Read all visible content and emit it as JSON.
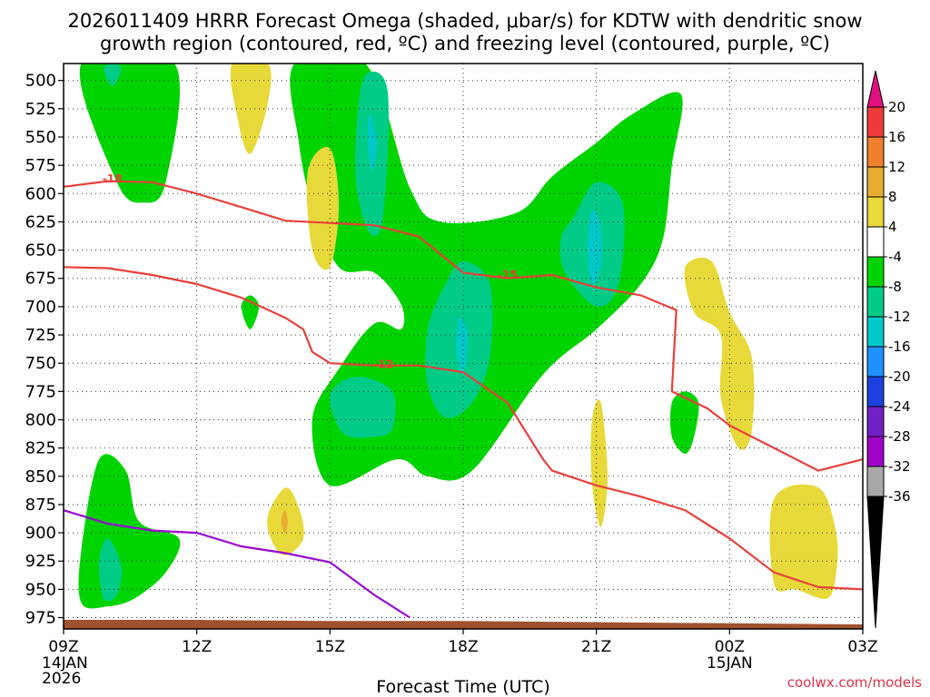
{
  "chart_data": {
    "type": "contour",
    "title_line1": "2026011409 HRRR Forecast Omega (shaded, μbar/s) for KDTW with dendritic snow",
    "title_line2": "growth region (contoured, red, ºC) and freezing level (contoured, purple, ºC)",
    "xlabel": "Forecast Time (UTC)",
    "source": "coolwx.com/models",
    "x_hours": [
      0,
      3,
      6,
      9,
      12,
      15,
      18
    ],
    "x_ticks": [
      "09Z",
      "12Z",
      "15Z",
      "18Z",
      "21Z",
      "00Z",
      "03Z"
    ],
    "x_sublabels": [
      {
        "hour": 0,
        "lines": [
          "14JAN",
          "2026"
        ]
      },
      {
        "hour": 15,
        "lines": [
          "15JAN"
        ]
      }
    ],
    "y_ticks": [
      500,
      525,
      550,
      575,
      600,
      625,
      650,
      675,
      700,
      725,
      750,
      775,
      800,
      825,
      850,
      875,
      900,
      925,
      950,
      975
    ],
    "ylim_hpa": [
      985,
      485
    ],
    "xlim_hours": [
      0,
      18
    ],
    "colorbar": {
      "labels": [
        "20",
        "16",
        "12",
        "8",
        "4",
        "-4",
        "-8",
        "-12",
        "-16",
        "-20",
        "-24",
        "-28",
        "-32",
        "-36"
      ],
      "colors": [
        "#ef3a3a",
        "#f0802c",
        "#e8ac30",
        "#e8d93a",
        "#ffffff",
        "#00d400",
        "#00cc88",
        "#00c8c8",
        "#1e90ff",
        "#1e40e0",
        "#7020c8",
        "#a000c8",
        "#a8a8a8"
      ],
      "top_arrow_color": "#e0117f",
      "bottom_arrow_color": "#000000"
    },
    "shaded_regions": [
      {
        "omega_bin": "-4 to -8",
        "color": "#00d400",
        "points": [
          [
            0.4,
            485
          ],
          [
            2.5,
            485
          ],
          [
            2.3,
            590
          ],
          [
            1.8,
            608
          ],
          [
            1.2,
            590
          ]
        ]
      },
      {
        "omega_bin": "-4 to -8",
        "color": "#00d400",
        "points": [
          [
            5.2,
            485
          ],
          [
            6.8,
            485
          ],
          [
            7.8,
            595
          ],
          [
            8.5,
            625
          ],
          [
            10.2,
            617
          ],
          [
            11.0,
            585
          ],
          [
            12.0,
            555
          ],
          [
            12.8,
            530
          ],
          [
            13.9,
            512
          ],
          [
            13.7,
            575
          ],
          [
            13.5,
            640
          ],
          [
            13.0,
            680
          ],
          [
            12.0,
            720
          ],
          [
            10.8,
            760
          ],
          [
            9.2,
            845
          ],
          [
            8.2,
            850
          ],
          [
            7.5,
            835
          ],
          [
            6.0,
            858
          ],
          [
            5.6,
            800
          ],
          [
            6.2,
            755
          ],
          [
            7.0,
            715
          ],
          [
            7.6,
            720
          ],
          [
            7.6,
            698
          ],
          [
            7.0,
            670
          ],
          [
            6.2,
            665
          ],
          [
            5.6,
            610
          ],
          [
            5.3,
            555
          ]
        ]
      },
      {
        "omega_bin": "-4 to -8",
        "color": "#00d400",
        "points": [
          [
            0.4,
            915
          ],
          [
            0.8,
            835
          ],
          [
            1.4,
            845
          ],
          [
            1.7,
            890
          ],
          [
            2.6,
            905
          ],
          [
            2.3,
            935
          ],
          [
            1.6,
            958
          ],
          [
            1.0,
            965
          ],
          [
            0.4,
            962
          ]
        ]
      },
      {
        "omega_bin": "-4 to -8",
        "color": "#00d400",
        "points": [
          [
            4.0,
            700
          ],
          [
            4.2,
            690
          ],
          [
            4.4,
            700
          ],
          [
            4.2,
            720
          ]
        ]
      },
      {
        "omega_bin": "-4 to -8",
        "color": "#00d400",
        "points": [
          [
            13.7,
            785
          ],
          [
            14.0,
            775
          ],
          [
            14.3,
            785
          ],
          [
            14.2,
            815
          ],
          [
            14.0,
            830
          ],
          [
            13.7,
            815
          ]
        ]
      },
      {
        "omega_bin": "-8 to -12",
        "color": "#00cc88",
        "points": [
          [
            0.9,
            490
          ],
          [
            1.1,
            485
          ],
          [
            1.3,
            490
          ],
          [
            1.1,
            505
          ]
        ]
      },
      {
        "omega_bin": "-8 to -12",
        "color": "#00cc88",
        "points": [
          [
            6.8,
            495
          ],
          [
            7.3,
            510
          ],
          [
            7.2,
            620
          ],
          [
            6.9,
            635
          ],
          [
            6.6,
            595
          ],
          [
            6.6,
            540
          ]
        ]
      },
      {
        "omega_bin": "-8 to -12",
        "color": "#00cc88",
        "points": [
          [
            11.5,
            620
          ],
          [
            12.0,
            590
          ],
          [
            12.6,
            610
          ],
          [
            12.5,
            680
          ],
          [
            12.0,
            700
          ],
          [
            11.3,
            670
          ],
          [
            11.2,
            640
          ]
        ]
      },
      {
        "omega_bin": "-8 to -12",
        "color": "#00cc88",
        "points": [
          [
            9.0,
            660
          ],
          [
            9.6,
            680
          ],
          [
            9.6,
            745
          ],
          [
            9.2,
            785
          ],
          [
            8.6,
            798
          ],
          [
            8.2,
            770
          ],
          [
            8.2,
            720
          ],
          [
            8.6,
            680
          ]
        ]
      },
      {
        "omega_bin": "-8 to -12",
        "color": "#00cc88",
        "points": [
          [
            6.0,
            778
          ],
          [
            6.6,
            762
          ],
          [
            7.4,
            775
          ],
          [
            7.4,
            808
          ],
          [
            7.0,
            815
          ],
          [
            6.3,
            812
          ]
        ]
      },
      {
        "omega_bin": "-8 to -12",
        "color": "#00cc88",
        "points": [
          [
            0.8,
            925
          ],
          [
            1.0,
            905
          ],
          [
            1.3,
            930
          ],
          [
            1.2,
            955
          ],
          [
            0.9,
            958
          ]
        ]
      },
      {
        "omega_bin": "-12 to -16",
        "color": "#00c8c8",
        "points": [
          [
            11.9,
            615
          ],
          [
            12.1,
            630
          ],
          [
            12.1,
            665
          ],
          [
            11.9,
            680
          ],
          [
            11.8,
            650
          ]
        ]
      },
      {
        "omega_bin": "-12 to -16",
        "color": "#00c8c8",
        "points": [
          [
            8.9,
            710
          ],
          [
            9.1,
            725
          ],
          [
            9.0,
            760
          ],
          [
            8.85,
            740
          ]
        ]
      },
      {
        "omega_bin": "-12 to -16",
        "color": "#00c8c8",
        "points": [
          [
            6.9,
            530
          ],
          [
            7.05,
            555
          ],
          [
            6.95,
            580
          ],
          [
            6.85,
            555
          ]
        ]
      },
      {
        "omega_bin": "4 to 8",
        "color": "#e8d93a",
        "points": [
          [
            3.8,
            485
          ],
          [
            4.6,
            485
          ],
          [
            4.6,
            520
          ],
          [
            4.2,
            565
          ],
          [
            3.9,
            530
          ]
        ]
      },
      {
        "omega_bin": "4 to 8",
        "color": "#e8d93a",
        "points": [
          [
            5.5,
            580
          ],
          [
            6.0,
            560
          ],
          [
            6.2,
            610
          ],
          [
            6.0,
            665
          ],
          [
            5.6,
            650
          ]
        ]
      },
      {
        "omega_bin": "4 to 8",
        "color": "#e8d93a",
        "points": [
          [
            14.0,
            665
          ],
          [
            14.6,
            660
          ],
          [
            15.0,
            705
          ],
          [
            15.5,
            745
          ],
          [
            15.5,
            810
          ],
          [
            15.2,
            825
          ],
          [
            14.8,
            780
          ],
          [
            14.8,
            725
          ],
          [
            14.2,
            705
          ]
        ]
      },
      {
        "omega_bin": "4 to 8",
        "color": "#e8d93a",
        "points": [
          [
            11.9,
            800
          ],
          [
            12.1,
            785
          ],
          [
            12.25,
            850
          ],
          [
            12.1,
            895
          ],
          [
            11.9,
            855
          ]
        ]
      },
      {
        "omega_bin": "4 to 8",
        "color": "#e8d93a",
        "points": [
          [
            4.6,
            885
          ],
          [
            5.0,
            860
          ],
          [
            5.3,
            878
          ],
          [
            5.4,
            905
          ],
          [
            5.0,
            920
          ],
          [
            4.7,
            908
          ]
        ]
      },
      {
        "omega_bin": "4 to 8",
        "color": "#e8d93a",
        "points": [
          [
            16.0,
            870
          ],
          [
            17.0,
            860
          ],
          [
            17.4,
            900
          ],
          [
            17.4,
            935
          ],
          [
            17.2,
            958
          ],
          [
            16.5,
            950
          ],
          [
            16.0,
            945
          ]
        ]
      },
      {
        "omega_bin": "8 to 12",
        "color": "#e8ac30",
        "points": [
          [
            4.98,
            880
          ],
          [
            5.05,
            890
          ],
          [
            4.98,
            900
          ],
          [
            4.9,
            890
          ]
        ]
      }
    ],
    "red_contours": [
      {
        "label": "-18",
        "label_at": [
          1.1,
          587
        ],
        "points": [
          [
            0,
            594
          ],
          [
            1.0,
            589
          ],
          [
            2.0,
            590
          ],
          [
            3.0,
            600
          ],
          [
            4.0,
            612
          ],
          [
            5.0,
            624
          ],
          [
            6.0,
            626
          ],
          [
            7.0,
            628
          ],
          [
            8.0,
            638
          ],
          [
            9.0,
            670
          ],
          [
            10.0,
            675
          ],
          [
            11.0,
            672
          ],
          [
            12.0,
            683
          ],
          [
            13.0,
            690
          ],
          [
            13.8,
            703
          ],
          [
            13.7,
            775
          ],
          [
            14.5,
            790
          ],
          [
            15.0,
            805
          ],
          [
            16.0,
            825
          ],
          [
            17.0,
            845
          ],
          [
            18.0,
            835
          ]
        ]
      },
      {
        "label": "-12",
        "label_at": [
          7.2,
          751
        ],
        "points": [
          [
            0,
            665
          ],
          [
            1.0,
            666
          ],
          [
            2.0,
            672
          ],
          [
            3.0,
            680
          ],
          [
            4.0,
            692
          ],
          [
            5.0,
            710
          ],
          [
            5.4,
            720
          ],
          [
            5.6,
            740
          ],
          [
            6.0,
            750
          ],
          [
            7.0,
            752
          ],
          [
            8.0,
            752
          ],
          [
            9.0,
            758
          ],
          [
            10.0,
            785
          ],
          [
            10.8,
            835
          ],
          [
            11.0,
            845
          ],
          [
            12.0,
            858
          ],
          [
            13.0,
            868
          ],
          [
            14.0,
            880
          ],
          [
            15.0,
            905
          ],
          [
            16.0,
            935
          ],
          [
            17.0,
            948
          ],
          [
            18.0,
            950
          ]
        ]
      },
      {
        "label": "-15",
        "label_at": [
          10.0,
          672
        ],
        "points": []
      }
    ],
    "purple_contour": {
      "points": [
        [
          0,
          880
        ],
        [
          1.0,
          892
        ],
        [
          2.0,
          898
        ],
        [
          3.0,
          900
        ],
        [
          4.0,
          912
        ],
        [
          5.0,
          918
        ],
        [
          6.0,
          926
        ],
        [
          7.0,
          955
        ],
        [
          7.8,
          975
        ]
      ]
    },
    "terrain_color": "#a0522d",
    "terrain": [
      [
        0,
        977
      ],
      [
        3.0,
        977
      ],
      [
        6.0,
        978
      ],
      [
        9.0,
        978
      ],
      [
        12.0,
        979
      ],
      [
        15.0,
        980
      ],
      [
        18.0,
        981
      ]
    ]
  }
}
